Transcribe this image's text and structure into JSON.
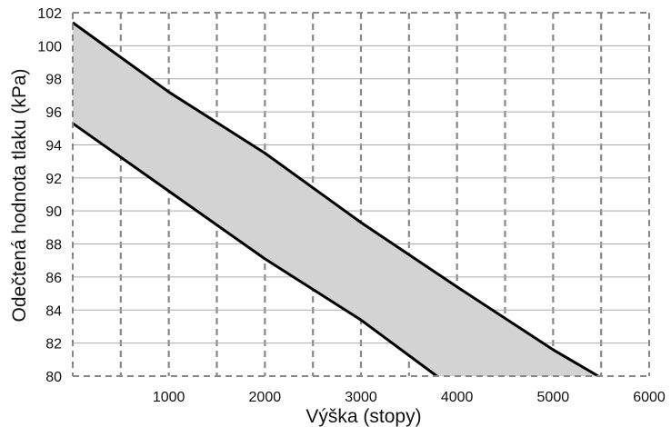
{
  "chart_data": {
    "type": "area",
    "title": "",
    "xlabel": "Výška (stopy)",
    "ylabel": "Odečtená hodnota tlaku (kPa)",
    "xlim": [
      0,
      6000
    ],
    "ylim": [
      80,
      102
    ],
    "xticks": [
      1000,
      2000,
      3000,
      4000,
      5000,
      6000
    ],
    "yticks": [
      80,
      82,
      84,
      86,
      88,
      90,
      92,
      94,
      96,
      98,
      100,
      102
    ],
    "vertical_grid_step": 500,
    "grid": true,
    "band": {
      "upper": {
        "x": [
          0,
          1000,
          2000,
          3000,
          4000,
          5000,
          5470
        ],
        "y": [
          101.4,
          97.2,
          93.5,
          89.3,
          85.4,
          81.6,
          80
        ]
      },
      "lower": {
        "x": [
          0,
          1000,
          2000,
          3000,
          3790
        ],
        "y": [
          95.3,
          91.2,
          87.1,
          83.4,
          80
        ]
      }
    },
    "colors": {
      "fill": "#d3d3d3",
      "line": "#000000",
      "grid": "#999999"
    }
  }
}
